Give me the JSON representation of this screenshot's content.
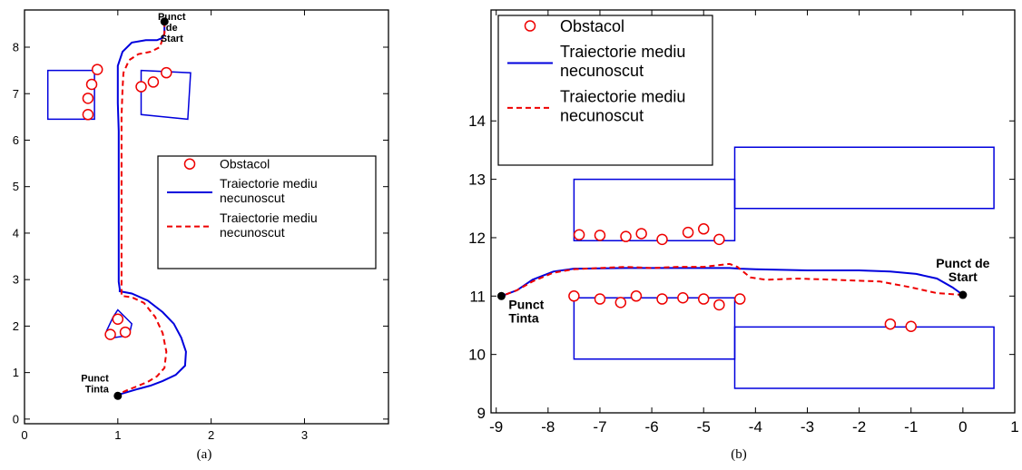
{
  "chart_data": [
    {
      "type": "line",
      "caption": "(a)",
      "xlim": [
        0,
        3.9
      ],
      "ylim": [
        -0.1,
        8.8
      ],
      "xticks": [
        "0",
        "1",
        "2",
        "3"
      ],
      "yticks": [
        "0",
        "1",
        "2",
        "3",
        "4",
        "5",
        "6",
        "7",
        "8"
      ],
      "legend": {
        "position": "right",
        "entries": [
          {
            "label": "Obstacol"
          },
          {
            "label": [
              "Traiectorie mediu",
              "necunoscut"
            ]
          },
          {
            "label": [
              "Traiectorie mediu",
              "necunoscut"
            ]
          }
        ]
      },
      "annotations": {
        "start": {
          "text": [
            "Punct",
            "de",
            "Start"
          ],
          "x": 1.5,
          "y": 8.55
        },
        "target": {
          "text": [
            "Punct",
            "Tinta"
          ],
          "x": 1.0,
          "y": 0.5
        }
      },
      "obstacles": [
        [
          0.68,
          6.55
        ],
        [
          0.68,
          6.9
        ],
        [
          0.72,
          7.2
        ],
        [
          0.78,
          7.52
        ],
        [
          1.25,
          7.15
        ],
        [
          1.38,
          7.25
        ],
        [
          1.52,
          7.45
        ],
        [
          1.0,
          2.15
        ],
        [
          0.92,
          1.82
        ],
        [
          1.08,
          1.87
        ]
      ],
      "regions": [
        [
          [
            0.25,
            7.5
          ],
          [
            0.75,
            7.5
          ],
          [
            0.75,
            6.45
          ],
          [
            0.25,
            6.45
          ]
        ],
        [
          [
            1.25,
            7.5
          ],
          [
            1.78,
            7.45
          ],
          [
            1.75,
            6.45
          ],
          [
            1.25,
            6.55
          ]
        ],
        [
          [
            1.0,
            2.35
          ],
          [
            1.15,
            2.05
          ],
          [
            1.12,
            1.8
          ],
          [
            0.95,
            1.75
          ],
          [
            0.88,
            1.9
          ],
          [
            0.95,
            2.2
          ]
        ]
      ],
      "series": [
        {
          "style": "solid",
          "color": "#0000dd",
          "x": [
            1.5,
            1.5,
            1.48,
            1.42,
            1.3,
            1.15,
            1.05,
            1.0,
            1.0,
            1.0,
            1.01,
            1.01,
            1.01,
            1.01,
            1.01,
            1.01,
            1.01,
            1.01,
            1.02,
            1.02,
            1.15,
            1.32,
            1.48,
            1.6,
            1.68,
            1.73,
            1.72,
            1.62,
            1.48,
            1.35,
            1.22,
            1.1,
            1.0
          ],
          "y": [
            8.55,
            8.3,
            8.2,
            8.15,
            8.15,
            8.1,
            7.9,
            7.6,
            7.2,
            6.8,
            6.2,
            5.5,
            5.0,
            4.5,
            4.0,
            3.5,
            3.1,
            2.95,
            2.8,
            2.75,
            2.7,
            2.55,
            2.3,
            2.05,
            1.75,
            1.45,
            1.15,
            0.95,
            0.82,
            0.72,
            0.65,
            0.58,
            0.52
          ]
        },
        {
          "style": "dashed",
          "color": "#ee0000",
          "x": [
            1.5,
            1.5,
            1.45,
            1.35,
            1.22,
            1.12,
            1.06,
            1.05,
            1.04,
            1.04,
            1.04,
            1.04,
            1.04,
            1.04,
            1.04,
            1.04,
            1.04,
            1.15,
            1.28,
            1.4,
            1.48,
            1.52,
            1.5,
            1.42,
            1.32,
            1.2,
            1.1,
            1.03,
            1.0
          ],
          "y": [
            8.55,
            8.3,
            8.0,
            7.9,
            7.85,
            7.72,
            7.45,
            7.1,
            6.5,
            5.8,
            5.0,
            4.2,
            3.5,
            3.0,
            2.85,
            2.75,
            2.65,
            2.62,
            2.5,
            2.2,
            1.85,
            1.45,
            1.1,
            0.92,
            0.8,
            0.7,
            0.62,
            0.56,
            0.52
          ]
        }
      ]
    },
    {
      "type": "line",
      "caption": "(b)",
      "xlim": [
        -9.1,
        1.0
      ],
      "ylim": [
        9.0,
        15.9
      ],
      "xticks": [
        "-9",
        "-8",
        "-7",
        "-6",
        "-5",
        "-4",
        "-3",
        "-2",
        "-1",
        "0",
        "1"
      ],
      "yticks": [
        "9",
        "10",
        "11",
        "12",
        "13",
        "14"
      ],
      "legend": {
        "position": "top-left",
        "entries": [
          {
            "label": "Obstacol"
          },
          {
            "label": [
              "Traiectorie mediu",
              "necunoscut"
            ]
          },
          {
            "label": [
              "Traiectorie mediu",
              "necunoscut"
            ]
          }
        ]
      },
      "annotations": {
        "start": {
          "text": [
            "Punct de",
            "Start"
          ],
          "x": 0.0,
          "y": 11.02
        },
        "target": {
          "text": [
            "Punct",
            "Tinta"
          ],
          "x": -8.9,
          "y": 11.0
        }
      },
      "obstacles": [
        [
          -7.4,
          12.05
        ],
        [
          -7.0,
          12.04
        ],
        [
          -6.5,
          12.02
        ],
        [
          -6.2,
          12.07
        ],
        [
          -5.8,
          11.97
        ],
        [
          -5.3,
          12.09
        ],
        [
          -5.0,
          12.15
        ],
        [
          -4.7,
          11.97
        ],
        [
          -7.5,
          11.0
        ],
        [
          -7.0,
          10.95
        ],
        [
          -6.6,
          10.89
        ],
        [
          -6.3,
          11.0
        ],
        [
          -5.8,
          10.95
        ],
        [
          -5.4,
          10.97
        ],
        [
          -5.0,
          10.95
        ],
        [
          -4.7,
          10.85
        ],
        [
          -4.3,
          10.95
        ],
        [
          -1.4,
          10.52
        ],
        [
          -1.0,
          10.48
        ]
      ],
      "regions": [
        [
          [
            -7.5,
            13.0
          ],
          [
            -4.4,
            13.0
          ],
          [
            -4.4,
            11.95
          ],
          [
            -7.5,
            11.95
          ]
        ],
        [
          [
            -4.4,
            13.55
          ],
          [
            0.6,
            13.55
          ],
          [
            0.6,
            12.5
          ],
          [
            -4.4,
            12.5
          ]
        ],
        [
          [
            -7.5,
            10.97
          ],
          [
            -4.4,
            10.97
          ],
          [
            -4.4,
            9.92
          ],
          [
            -7.5,
            9.92
          ]
        ],
        [
          [
            -4.4,
            10.47
          ],
          [
            0.6,
            10.47
          ],
          [
            0.6,
            9.42
          ],
          [
            -4.4,
            9.42
          ]
        ]
      ],
      "series": [
        {
          "style": "solid",
          "color": "#0000dd",
          "x": [
            0.0,
            -0.2,
            -0.5,
            -0.9,
            -1.4,
            -2.0,
            -3.0,
            -4.0,
            -4.3,
            -4.5,
            -5.5,
            -6.5,
            -7.5,
            -7.9,
            -8.3,
            -8.6,
            -8.9
          ],
          "y": [
            11.02,
            11.15,
            11.3,
            11.38,
            11.42,
            11.44,
            11.44,
            11.46,
            11.47,
            11.48,
            11.48,
            11.48,
            11.47,
            11.42,
            11.28,
            11.1,
            11.0
          ]
        },
        {
          "style": "dashed",
          "color": "#ee0000",
          "x": [
            0.0,
            -0.5,
            -1.0,
            -1.6,
            -2.5,
            -3.2,
            -3.8,
            -4.1,
            -4.35,
            -4.5,
            -5.0,
            -5.5,
            -6.0,
            -6.5,
            -7.0,
            -7.5,
            -7.9,
            -8.3,
            -8.6,
            -8.9
          ],
          "y": [
            11.02,
            11.05,
            11.15,
            11.25,
            11.28,
            11.3,
            11.28,
            11.32,
            11.5,
            11.55,
            11.5,
            11.5,
            11.48,
            11.5,
            11.48,
            11.46,
            11.4,
            11.25,
            11.1,
            11.0
          ]
        }
      ]
    }
  ]
}
